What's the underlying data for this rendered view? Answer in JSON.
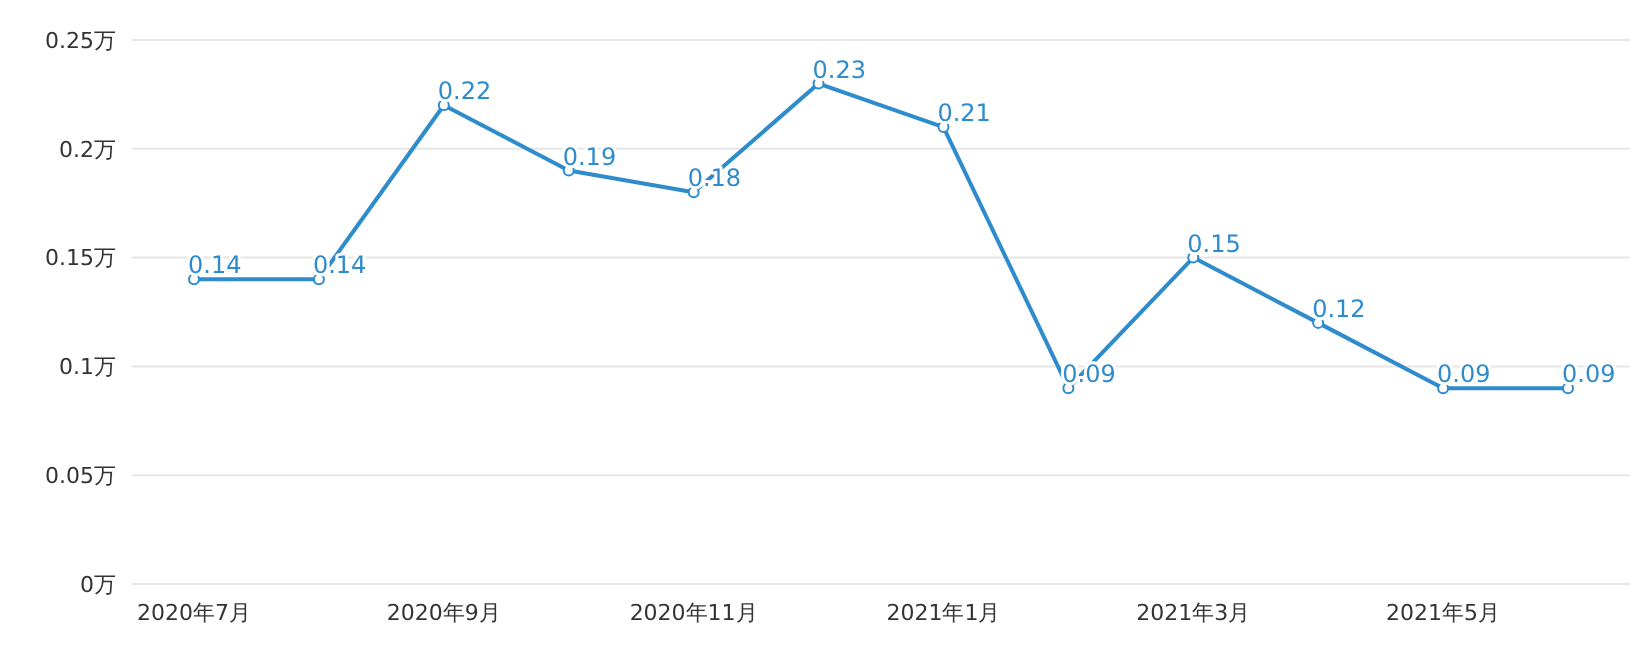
{
  "chart_data": {
    "type": "line",
    "categories": [
      "2020年7月",
      null,
      "2020年9月",
      null,
      "2020年11月",
      null,
      "2021年1月",
      null,
      "2021年3月",
      null,
      "2021年5月",
      null
    ],
    "series": [
      {
        "color": "#2e8bcc",
        "values": [
          0.14,
          0.14,
          0.22,
          0.19,
          0.18,
          0.23,
          0.21,
          0.09,
          0.15,
          0.12,
          0.09,
          0.09
        ]
      }
    ],
    "ylim": [
      0,
      0.25
    ],
    "yticks": [
      {
        "value": 0,
        "label": "0万"
      },
      {
        "value": 0.05,
        "label": "0.05万"
      },
      {
        "value": 0.1,
        "label": "0.1万"
      },
      {
        "value": 0.15,
        "label": "0.15万"
      },
      {
        "value": 0.2,
        "label": "0.2万"
      },
      {
        "value": 0.25,
        "label": "0.25万"
      }
    ],
    "grid": "y",
    "marker": "circle",
    "line_style": "solid",
    "data_labels": true
  }
}
